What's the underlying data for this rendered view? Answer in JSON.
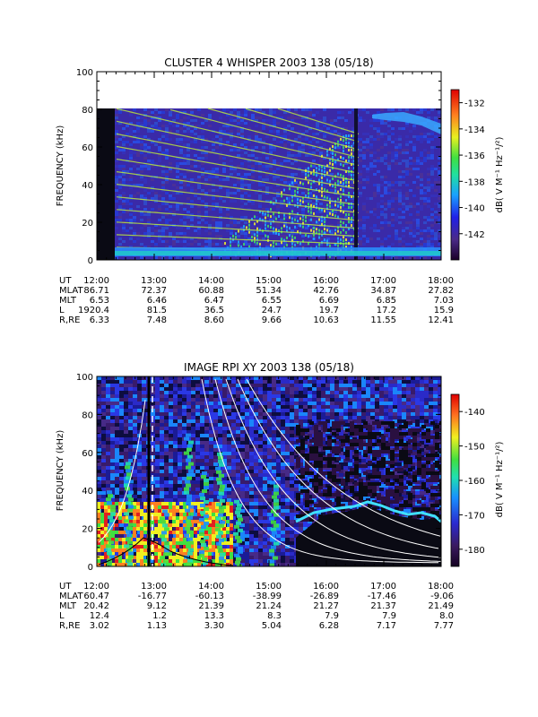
{
  "chart_data": [
    {
      "type": "heatmap",
      "title": "CLUSTER 4 WHISPER 2003 138 (05/18)",
      "ylabel": "FREQUENCY (kHz)",
      "y_ticks": [
        0,
        20,
        40,
        60,
        80,
        100
      ],
      "ylim": [
        0,
        100
      ],
      "x_ticks": [
        "12:00",
        "13:00",
        "14:00",
        "15:00",
        "16:00",
        "17:00",
        "18:00"
      ],
      "colorbar": {
        "label": "dB( V M⁻¹ Hz⁻¹/²)",
        "ticks": [
          -132,
          -134,
          -136,
          -138,
          -140,
          -142
        ],
        "range": [
          -144,
          -131
        ]
      },
      "ephemeris_labels": [
        "UT",
        "MLAT",
        "MLT",
        "L",
        "R,RE"
      ],
      "ephemeris": {
        "UT": [
          "12:00",
          "13:00",
          "14:00",
          "15:00",
          "16:00",
          "17:00",
          "18:00"
        ],
        "MLAT": [
          "86.71",
          "72.37",
          "60.88",
          "51.34",
          "42.76",
          "34.87",
          "27.82"
        ],
        "MLT": [
          "6.53",
          "6.46",
          "6.47",
          "6.55",
          "6.69",
          "6.85",
          "7.03"
        ],
        "L": [
          "1920.4",
          "81.5",
          "36.5",
          "24.7",
          "19.7",
          "17.2",
          "15.9"
        ],
        "R,RE": [
          "6.33",
          "7.48",
          "8.60",
          "9.66",
          "10.63",
          "11.55",
          "12.41"
        ]
      }
    },
    {
      "type": "heatmap",
      "title": "IMAGE RPI XY 2003 138 (05/18)",
      "ylabel": "FREQUENCY (kHz)",
      "y_ticks": [
        0,
        20,
        40,
        60,
        80,
        100
      ],
      "ylim": [
        0,
        100
      ],
      "x_ticks": [
        "12:00",
        "13:00",
        "14:00",
        "15:00",
        "16:00",
        "17:00",
        "18:00"
      ],
      "colorbar": {
        "label": "dB( V M⁻¹ Hz⁻¹/²)",
        "ticks": [
          -140,
          -150,
          -160,
          -170,
          -180
        ],
        "range": [
          -185,
          -135
        ]
      },
      "ephemeris_labels": [
        "UT",
        "MLAT",
        "MLT",
        "L",
        "R,RE"
      ],
      "ephemeris": {
        "UT": [
          "12:00",
          "13:00",
          "14:00",
          "15:00",
          "16:00",
          "17:00",
          "18:00"
        ],
        "MLAT": [
          "60.47",
          "-16.77",
          "-60.13",
          "-38.99",
          "-26.89",
          "-17.46",
          "-9.06"
        ],
        "MLT": [
          "20.42",
          "9.12",
          "21.39",
          "21.24",
          "21.27",
          "21.37",
          "21.49"
        ],
        "L": [
          "12.4",
          "1.2",
          "13.3",
          "8.3",
          "7.9",
          "7.9",
          "8.0"
        ],
        "R,RE": [
          "3.02",
          "1.13",
          "3.30",
          "5.04",
          "6.28",
          "7.17",
          "7.77"
        ]
      }
    }
  ]
}
